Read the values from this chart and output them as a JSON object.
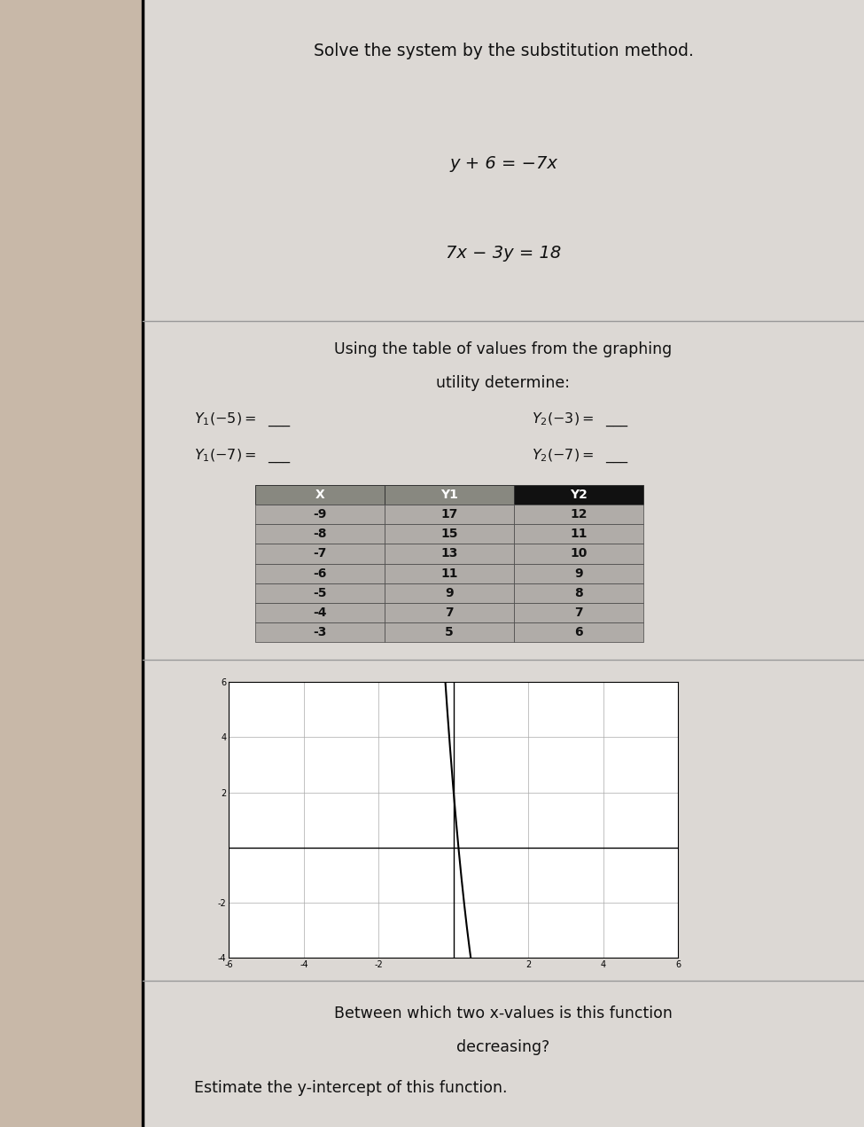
{
  "bg_outer": "#b8a898",
  "bg_inner": "#e0dcd8",
  "bg_section": "#d8d4d0",
  "left_strip_color": "#c8c0b8",
  "section1_title": "Solve the system by the substitution method.",
  "eq1": "y + 6 = −7x",
  "eq2": "7x − 3y = 18",
  "table_headers": [
    "X",
    "Y1",
    "Y2"
  ],
  "table_x": [
    "-9",
    "-8",
    "-7",
    "-6",
    "-5",
    "-4",
    "-3"
  ],
  "table_y1": [
    "17",
    "15",
    "13",
    "11",
    "9",
    "7",
    "5"
  ],
  "table_y2": [
    "12",
    "11",
    "10",
    "9",
    "8",
    "7",
    "6"
  ],
  "question3": "Between which two x-values is this function\ndecreasing?",
  "question4": "Estimate the y-intercept of this function.",
  "divider_color": "#999999",
  "table_header_x_bg": "#888880",
  "table_header_y1_bg": "#888880",
  "table_header_y2_bg": "#111111",
  "table_body_bg": "#b0aca8",
  "graph_xlim": [
    -6,
    6
  ],
  "graph_ylim": [
    -4,
    6
  ]
}
